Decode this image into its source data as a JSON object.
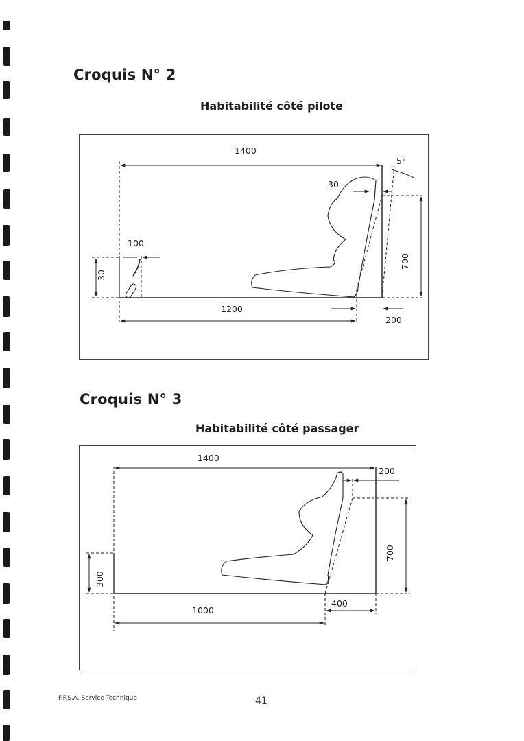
{
  "croquis2": {
    "title": "Croquis N° 2",
    "subtitle": "Habitabilité côté pilote",
    "dims": {
      "top_width": "1400",
      "angle": "5°",
      "seat_offset": "30",
      "step_width": "100",
      "step_height": "30",
      "back_height": "700",
      "floor_length": "1200",
      "rear_gap": "200"
    }
  },
  "croquis3": {
    "title": "Croquis N° 3",
    "subtitle": "Habitabilité côté passager",
    "dims": {
      "top_width": "1400",
      "top_right": "200",
      "back_height": "700",
      "front_height": "300",
      "floor_length": "1000",
      "rear_gap": "400"
    }
  },
  "footer": {
    "org": "F.F.S.A. Service Technique",
    "page": "41"
  }
}
